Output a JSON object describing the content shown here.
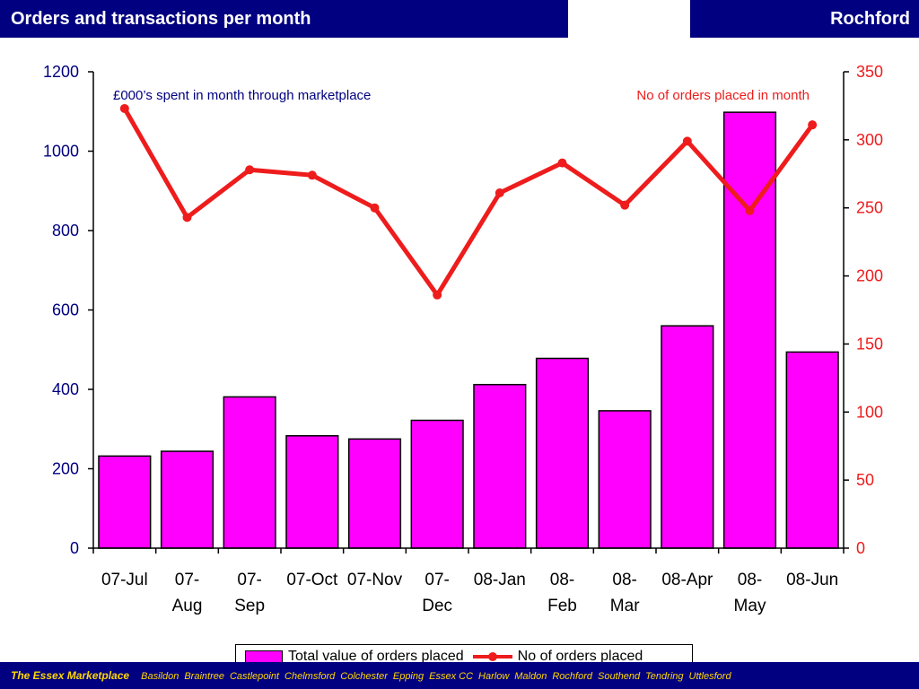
{
  "header": {
    "title": "Orders and transactions per month",
    "region": "Rochford"
  },
  "footer": {
    "brand": "The Essex Marketplace",
    "towns": [
      "Basildon",
      "Braintree",
      "Castlepoint",
      "Chelmsford",
      "Colchester",
      "Epping",
      "Essex CC",
      "Harlow",
      "Maldon",
      "Rochford",
      "Southend",
      "Tendring",
      "Uttlesford"
    ]
  },
  "chart_data": {
    "type": "bar",
    "categories": [
      "07-Jul",
      "07-Aug",
      "07-Sep",
      "07-Oct",
      "07-Nov",
      "07-Dec",
      "08-Jan",
      "08-Feb",
      "08-Mar",
      "08-Apr",
      "08-May",
      "08-Jun"
    ],
    "category_display": [
      [
        "07-Jul"
      ],
      [
        "07-",
        "Aug"
      ],
      [
        "07-",
        "Sep"
      ],
      [
        "07-Oct"
      ],
      [
        "07-Nov"
      ],
      [
        "07-",
        "Dec"
      ],
      [
        "08-Jan"
      ],
      [
        "08-",
        "Feb"
      ],
      [
        "08-",
        "Mar"
      ],
      [
        "08-Apr"
      ],
      [
        "08-",
        "May"
      ],
      [
        "08-Jun"
      ]
    ],
    "series": [
      {
        "name": "Total value of orders placed",
        "type": "bar",
        "axis": "left",
        "color": "#ff00ff",
        "values": [
          232,
          244,
          381,
          283,
          275,
          322,
          412,
          478,
          346,
          560,
          1098,
          494
        ]
      },
      {
        "name": "No of orders placed",
        "type": "line",
        "axis": "right",
        "color": "#ee1c1c",
        "values": [
          323,
          243,
          278,
          274,
          250,
          186,
          261,
          283,
          252,
          299,
          248,
          311
        ]
      }
    ],
    "left_axis": {
      "label": "£000’s spent in month through marketplace",
      "min": 0,
      "max": 1200,
      "ticks": [
        0,
        200,
        400,
        600,
        800,
        1000,
        1200
      ],
      "color": "#000080"
    },
    "right_axis": {
      "label": "No of orders placed in month",
      "min": 0,
      "max": 350,
      "ticks": [
        0,
        50,
        100,
        150,
        200,
        250,
        300,
        350
      ],
      "color": "#ee1c1c"
    },
    "grid": false,
    "legend": "bottom"
  }
}
